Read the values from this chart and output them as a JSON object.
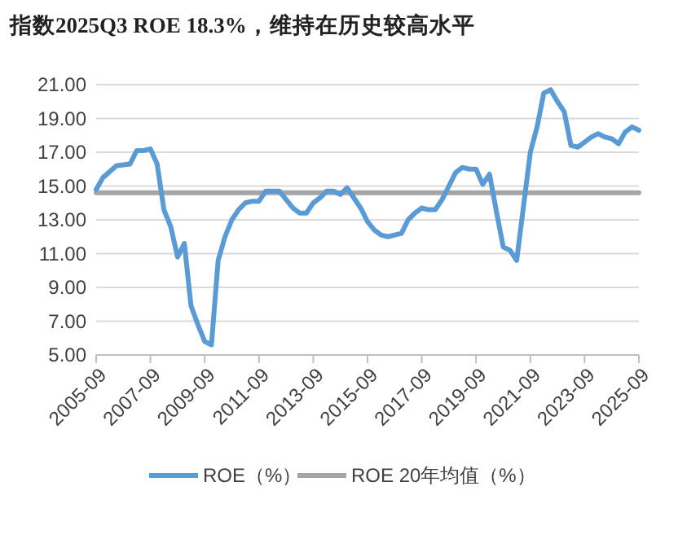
{
  "chart_data": {
    "type": "line",
    "title": "指数2025Q3 ROE 18.3%，维持在历史较高水平",
    "x": [
      "2005-09",
      "2005-12",
      "2006-06",
      "2006-12",
      "2007-03",
      "2007-06",
      "2007-09",
      "2007-12",
      "2008-03",
      "2008-06",
      "2008-09",
      "2008-12",
      "2009-03",
      "2009-06",
      "2009-09",
      "2009-12",
      "2010-03",
      "2010-06",
      "2010-09",
      "2010-12",
      "2011-03",
      "2011-06",
      "2011-09",
      "2011-12",
      "2012-03",
      "2012-06",
      "2012-09",
      "2012-12",
      "2013-03",
      "2013-06",
      "2013-09",
      "2013-12",
      "2014-03",
      "2014-06",
      "2014-09",
      "2014-12",
      "2015-03",
      "2015-06",
      "2015-09",
      "2015-12",
      "2016-03",
      "2016-06",
      "2016-09",
      "2016-12",
      "2017-03",
      "2017-06",
      "2017-09",
      "2017-12",
      "2018-03",
      "2018-06",
      "2018-09",
      "2018-12",
      "2019-03",
      "2019-06",
      "2019-09",
      "2019-12",
      "2020-03",
      "2020-06",
      "2020-09",
      "2020-12",
      "2021-03",
      "2021-06",
      "2021-09",
      "2021-12",
      "2022-03",
      "2022-06",
      "2022-09",
      "2022-12",
      "2023-03",
      "2023-06",
      "2023-09",
      "2023-12",
      "2024-03",
      "2024-06",
      "2024-09",
      "2024-12",
      "2025-03",
      "2025-06",
      "2025-09"
    ],
    "series": [
      {
        "name": "ROE（%）",
        "color": "#5b9bd5",
        "values": [
          14.8,
          15.5,
          16.2,
          16.3,
          17.1,
          17.1,
          17.2,
          16.3,
          13.6,
          12.6,
          10.8,
          11.6,
          7.9,
          6.8,
          5.8,
          5.6,
          10.6,
          12.0,
          13.0,
          13.6,
          14.0,
          14.1,
          14.1,
          14.7,
          14.7,
          14.7,
          14.2,
          13.7,
          13.4,
          13.4,
          14.0,
          14.3,
          14.7,
          14.7,
          14.5,
          14.9,
          14.3,
          13.7,
          12.9,
          12.4,
          12.1,
          12.0,
          12.1,
          12.2,
          13.0,
          13.4,
          13.7,
          13.6,
          13.6,
          14.2,
          15.0,
          15.8,
          16.1,
          16.0,
          16.0,
          15.1,
          15.7,
          13.5,
          11.4,
          11.2,
          10.6,
          13.8,
          17.0,
          18.5,
          20.5,
          20.7,
          20.0,
          19.4,
          17.4,
          17.3,
          17.6,
          17.9,
          18.1,
          17.9,
          17.8,
          17.5,
          18.2,
          18.5,
          18.3
        ]
      },
      {
        "name": "ROE 20年均值（%）",
        "color": "#a5a5a5",
        "x": [
          "2005-09",
          "2025-09"
        ],
        "values": [
          14.6,
          14.6
        ]
      }
    ],
    "xlim": [
      "2005-09",
      "2025-09"
    ],
    "xticks": [
      "2005-09",
      "2007-09",
      "2009-09",
      "2011-09",
      "2013-09",
      "2015-09",
      "2017-09",
      "2019-09",
      "2021-09",
      "2023-09",
      "2025-09"
    ],
    "ylim": [
      5,
      21
    ],
    "yticks": [
      {
        "value": 5,
        "label": "5.00"
      },
      {
        "value": 7,
        "label": "7.00"
      },
      {
        "value": 9,
        "label": "9.00"
      },
      {
        "value": 11,
        "label": "11.00"
      },
      {
        "value": 13,
        "label": "13.00"
      },
      {
        "value": 15,
        "label": "15.00"
      },
      {
        "value": 17,
        "label": "17.00"
      },
      {
        "value": 19,
        "label": "19.00"
      },
      {
        "value": 21,
        "label": "21.00"
      }
    ],
    "grid": "y",
    "legend": "bottom",
    "marker": "none",
    "line_style": "solid"
  }
}
